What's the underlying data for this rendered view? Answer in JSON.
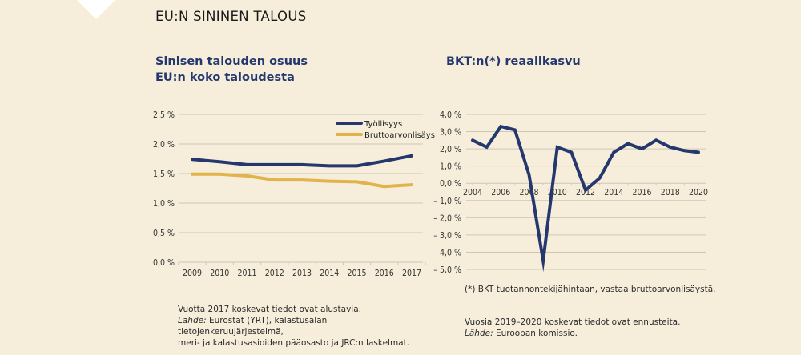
{
  "page": {
    "title": "EU:N SININEN TALOUS"
  },
  "colors": {
    "background": "#f6eedb",
    "navy": "#25386e",
    "gold": "#e1b34a",
    "grid": "#cfc7b6"
  },
  "chart_data": [
    {
      "type": "line",
      "title": "Sinisen talouden osuus EU:n koko taloudesta",
      "title_lines": [
        "Sinisen talouden osuus",
        "EU:n koko taloudesta"
      ],
      "xlabel": "",
      "ylabel": "",
      "x": [
        "2009",
        "2010",
        "2011",
        "2012",
        "2013",
        "2014",
        "2015",
        "2016",
        "2017"
      ],
      "ylim": [
        0,
        2.5
      ],
      "yticks": [
        0.0,
        0.5,
        1.0,
        1.5,
        2.0,
        2.5
      ],
      "ytick_labels": [
        "0,0 %",
        "0,5 %",
        "1,0 %",
        "1,5 %",
        "2,0 %",
        "2,5 %"
      ],
      "grid": true,
      "legend_position": "top-right",
      "series": [
        {
          "name": "Työllisyys",
          "color": "#25386e",
          "values": [
            1.74,
            1.7,
            1.65,
            1.65,
            1.65,
            1.63,
            1.63,
            1.71,
            1.8
          ]
        },
        {
          "name": "Bruttoarvonlisäys",
          "color": "#e1b34a",
          "values": [
            1.49,
            1.49,
            1.46,
            1.39,
            1.39,
            1.37,
            1.36,
            1.28,
            1.31
          ]
        }
      ],
      "notes": {
        "line1": "Vuotta 2017 koskevat tiedot ovat alustavia.",
        "source_label": "Lähde:",
        "source_text": " Eurostat (YRT), kalastusalan tietojenkeruujärjestelmä,",
        "line3": "meri- ja kalastusasioiden pääosasto ja JRC:n laskelmat."
      }
    },
    {
      "type": "line",
      "title": "BKT:n(*) reaalikasvu",
      "xlabel": "",
      "ylabel": "",
      "x": [
        "2004",
        "2005",
        "2006",
        "2007",
        "2008",
        "2009",
        "2010",
        "2011",
        "2012",
        "2013",
        "2014",
        "2015",
        "2016",
        "2017",
        "2018",
        "2019",
        "2020"
      ],
      "xtick_labels": [
        "2004",
        "2006",
        "2008",
        "2010",
        "2012",
        "2014",
        "2016",
        "2018",
        "2020"
      ],
      "ylim": [
        -5,
        4
      ],
      "yticks": [
        4,
        3,
        2,
        1,
        0,
        -1,
        -2,
        -3,
        -4,
        -5
      ],
      "ytick_labels": [
        "4,0 %",
        "3,0 %",
        "2,0 %",
        "1,0 %",
        "0,0 %",
        "– 1,0 %",
        "– 2,0 %",
        "– 3,0 %",
        "– 4,0 %",
        "– 5,0 %"
      ],
      "grid": true,
      "series": [
        {
          "name": "BKT:n reaalikasvu",
          "color": "#25386e",
          "values": [
            2.5,
            2.1,
            3.3,
            3.1,
            0.5,
            -4.5,
            2.1,
            1.8,
            -0.4,
            0.3,
            1.8,
            2.3,
            2.0,
            2.5,
            2.1,
            1.9,
            1.8
          ]
        }
      ],
      "footnote": "(*) BKT tuotannontekijähintaan, vastaa bruttoarvonlisäystä.",
      "notes": {
        "line1": "Vuosia 2019–2020 koskevat tiedot ovat ennusteita.",
        "source_label": "Lähde:",
        "source_text": " Euroopan komissio."
      }
    }
  ]
}
